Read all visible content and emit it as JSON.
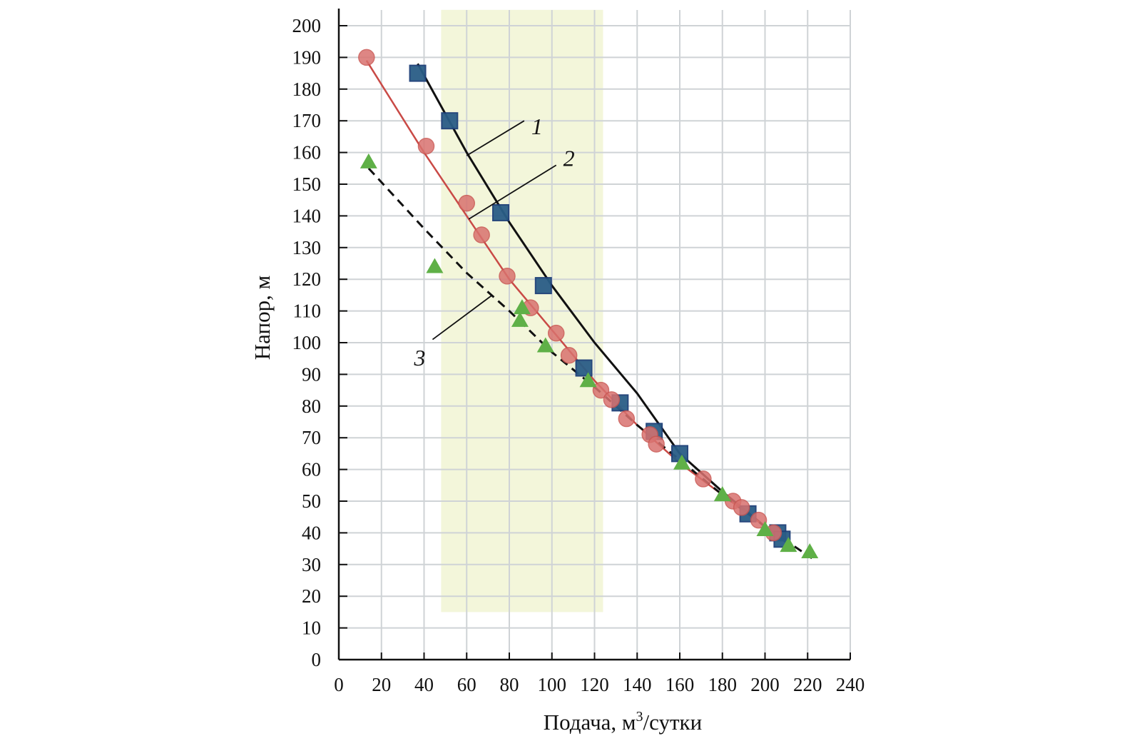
{
  "chart_data": {
    "type": "scatter",
    "title": "",
    "xlabel": "Подача, м",
    "xlabel_sup": "3",
    "xlabel_suffix": "/сутки",
    "ylabel": "Напор, м",
    "xlim": [
      0,
      240
    ],
    "ylim": [
      0,
      200
    ],
    "xticks": [
      0,
      20,
      40,
      60,
      80,
      100,
      120,
      140,
      160,
      180,
      200,
      220,
      240
    ],
    "yticks": [
      0,
      10,
      20,
      30,
      40,
      50,
      60,
      70,
      80,
      90,
      100,
      110,
      120,
      130,
      140,
      150,
      160,
      170,
      180,
      190,
      200
    ],
    "grid": true,
    "highlight_band": {
      "x": [
        48,
        124
      ],
      "y": [
        15,
        205
      ],
      "color": "#f3f6da"
    },
    "series": [
      {
        "name": "1",
        "marker": "square",
        "color": "#2a5d86",
        "line_color": "#111111",
        "line_style": "solid",
        "points": [
          [
            37,
            185
          ],
          [
            52,
            170
          ],
          [
            76,
            141
          ],
          [
            96,
            118
          ],
          [
            115,
            92
          ],
          [
            132,
            81
          ],
          [
            148,
            72
          ],
          [
            160,
            65
          ],
          [
            192,
            46
          ],
          [
            206,
            40
          ],
          [
            208,
            38
          ]
        ],
        "curve": [
          [
            37,
            188
          ],
          [
            60,
            160
          ],
          [
            80,
            138
          ],
          [
            100,
            118
          ],
          [
            120,
            100
          ],
          [
            140,
            84
          ],
          [
            160,
            65
          ],
          [
            180,
            53
          ],
          [
            200,
            42
          ],
          [
            210,
            37
          ]
        ]
      },
      {
        "name": "2",
        "marker": "circle",
        "color": "#d9726f",
        "line_color": "#c94a46",
        "line_style": "solid",
        "points": [
          [
            13,
            190
          ],
          [
            41,
            162
          ],
          [
            60,
            144
          ],
          [
            67,
            134
          ],
          [
            79,
            121
          ],
          [
            90,
            111
          ],
          [
            102,
            103
          ],
          [
            108,
            96
          ],
          [
            123,
            85
          ],
          [
            128,
            82
          ],
          [
            135,
            76
          ],
          [
            146,
            71
          ],
          [
            149,
            68
          ],
          [
            171,
            57
          ],
          [
            185,
            50
          ],
          [
            189,
            48
          ],
          [
            197,
            44
          ],
          [
            204,
            40
          ]
        ],
        "curve": [
          [
            13,
            189
          ],
          [
            40,
            160
          ],
          [
            60,
            140
          ],
          [
            80,
            120
          ],
          [
            100,
            104
          ],
          [
            120,
            88
          ],
          [
            140,
            74
          ],
          [
            160,
            62
          ],
          [
            180,
            52
          ],
          [
            200,
            42
          ],
          [
            207,
            38
          ]
        ]
      },
      {
        "name": "3",
        "marker": "triangle",
        "color": "#5fb047",
        "line_color": "#111111",
        "line_style": "dashed",
        "points": [
          [
            14,
            157
          ],
          [
            45,
            124
          ],
          [
            86,
            111
          ],
          [
            85,
            107
          ],
          [
            97,
            99
          ],
          [
            117,
            88
          ],
          [
            161,
            62
          ],
          [
            180,
            52
          ],
          [
            200,
            41
          ],
          [
            211,
            36
          ],
          [
            221,
            34
          ]
        ],
        "curve": [
          [
            14,
            155
          ],
          [
            40,
            136
          ],
          [
            60,
            122
          ],
          [
            80,
            110
          ],
          [
            100,
            97
          ],
          [
            120,
            86
          ],
          [
            140,
            74
          ],
          [
            160,
            63
          ],
          [
            180,
            52
          ],
          [
            200,
            42
          ],
          [
            222,
            32
          ]
        ]
      }
    ],
    "annotations": [
      {
        "text": "1",
        "at": [
          93,
          168
        ],
        "leader": [
          [
            60,
            159
          ],
          [
            87,
            170
          ]
        ]
      },
      {
        "text": "2",
        "at": [
          108,
          158
        ],
        "leader": [
          [
            61,
            139
          ],
          [
            102,
            156
          ]
        ]
      },
      {
        "text": "3",
        "at": [
          38,
          95
        ],
        "leader": [
          [
            44,
            101
          ],
          [
            72,
            115
          ]
        ]
      }
    ]
  }
}
